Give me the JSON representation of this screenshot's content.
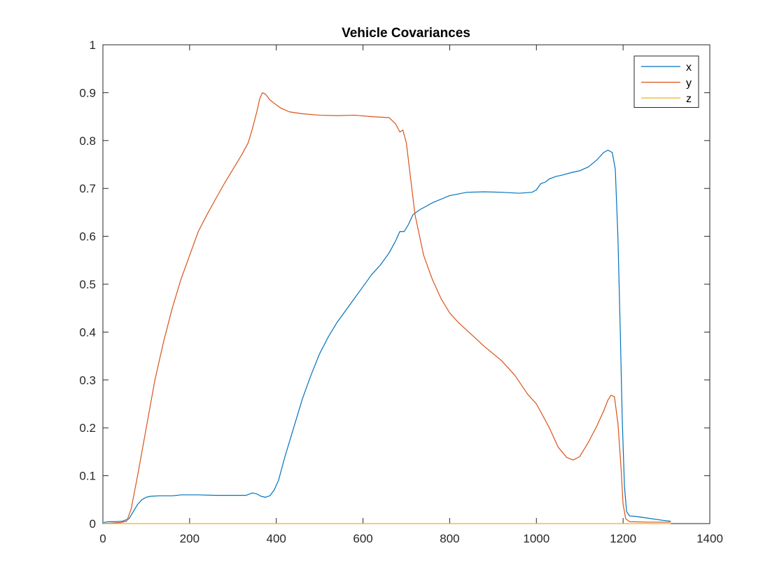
{
  "chart_data": {
    "type": "line",
    "title": "Vehicle Covariances",
    "xlabel": "",
    "ylabel": "",
    "xlim": [
      0,
      1400
    ],
    "ylim": [
      0,
      1
    ],
    "xticks": [
      0,
      200,
      400,
      600,
      800,
      1000,
      1200,
      1400
    ],
    "yticks": [
      0,
      0.1,
      0.2,
      0.3,
      0.4,
      0.5,
      0.6,
      0.7,
      0.8,
      0.9,
      1
    ],
    "grid": false,
    "legend_position": "top-right",
    "series": [
      {
        "name": "x",
        "color": "#0072BD",
        "points": [
          [
            0,
            0.0
          ],
          [
            5,
            0.003
          ],
          [
            15,
            0.004
          ],
          [
            30,
            0.004
          ],
          [
            45,
            0.005
          ],
          [
            60,
            0.01
          ],
          [
            70,
            0.025
          ],
          [
            80,
            0.04
          ],
          [
            90,
            0.05
          ],
          [
            100,
            0.055
          ],
          [
            110,
            0.057
          ],
          [
            130,
            0.058
          ],
          [
            160,
            0.058
          ],
          [
            180,
            0.06
          ],
          [
            220,
            0.06
          ],
          [
            260,
            0.059
          ],
          [
            300,
            0.059
          ],
          [
            330,
            0.059
          ],
          [
            345,
            0.064
          ],
          [
            355,
            0.062
          ],
          [
            365,
            0.057
          ],
          [
            375,
            0.055
          ],
          [
            385,
            0.058
          ],
          [
            395,
            0.07
          ],
          [
            405,
            0.09
          ],
          [
            420,
            0.14
          ],
          [
            440,
            0.2
          ],
          [
            460,
            0.26
          ],
          [
            480,
            0.31
          ],
          [
            500,
            0.355
          ],
          [
            520,
            0.39
          ],
          [
            540,
            0.42
          ],
          [
            560,
            0.445
          ],
          [
            580,
            0.47
          ],
          [
            600,
            0.495
          ],
          [
            620,
            0.52
          ],
          [
            640,
            0.54
          ],
          [
            660,
            0.565
          ],
          [
            675,
            0.59
          ],
          [
            685,
            0.61
          ],
          [
            695,
            0.61
          ],
          [
            705,
            0.625
          ],
          [
            715,
            0.645
          ],
          [
            730,
            0.655
          ],
          [
            760,
            0.67
          ],
          [
            800,
            0.685
          ],
          [
            840,
            0.692
          ],
          [
            880,
            0.693
          ],
          [
            920,
            0.692
          ],
          [
            960,
            0.69
          ],
          [
            990,
            0.692
          ],
          [
            1000,
            0.697
          ],
          [
            1010,
            0.71
          ],
          [
            1020,
            0.713
          ],
          [
            1030,
            0.72
          ],
          [
            1045,
            0.725
          ],
          [
            1060,
            0.728
          ],
          [
            1080,
            0.733
          ],
          [
            1100,
            0.737
          ],
          [
            1120,
            0.745
          ],
          [
            1140,
            0.76
          ],
          [
            1155,
            0.775
          ],
          [
            1165,
            0.78
          ],
          [
            1175,
            0.775
          ],
          [
            1182,
            0.74
          ],
          [
            1188,
            0.6
          ],
          [
            1193,
            0.42
          ],
          [
            1198,
            0.22
          ],
          [
            1203,
            0.08
          ],
          [
            1208,
            0.025
          ],
          [
            1215,
            0.016
          ],
          [
            1230,
            0.015
          ],
          [
            1260,
            0.011
          ],
          [
            1290,
            0.007
          ],
          [
            1310,
            0.005
          ]
        ]
      },
      {
        "name": "y",
        "color": "#D95319",
        "points": [
          [
            0,
            0.0
          ],
          [
            20,
            0.001
          ],
          [
            40,
            0.002
          ],
          [
            55,
            0.005
          ],
          [
            65,
            0.03
          ],
          [
            80,
            0.1
          ],
          [
            100,
            0.2
          ],
          [
            120,
            0.3
          ],
          [
            140,
            0.38
          ],
          [
            160,
            0.45
          ],
          [
            180,
            0.51
          ],
          [
            200,
            0.56
          ],
          [
            220,
            0.61
          ],
          [
            240,
            0.645
          ],
          [
            260,
            0.678
          ],
          [
            280,
            0.71
          ],
          [
            300,
            0.74
          ],
          [
            320,
            0.77
          ],
          [
            335,
            0.795
          ],
          [
            345,
            0.825
          ],
          [
            355,
            0.86
          ],
          [
            362,
            0.888
          ],
          [
            368,
            0.9
          ],
          [
            375,
            0.897
          ],
          [
            385,
            0.885
          ],
          [
            395,
            0.878
          ],
          [
            410,
            0.868
          ],
          [
            430,
            0.86
          ],
          [
            460,
            0.856
          ],
          [
            500,
            0.853
          ],
          [
            540,
            0.852
          ],
          [
            580,
            0.853
          ],
          [
            620,
            0.85
          ],
          [
            660,
            0.848
          ],
          [
            675,
            0.835
          ],
          [
            685,
            0.818
          ],
          [
            692,
            0.822
          ],
          [
            700,
            0.795
          ],
          [
            710,
            0.72
          ],
          [
            720,
            0.645
          ],
          [
            740,
            0.56
          ],
          [
            760,
            0.51
          ],
          [
            780,
            0.47
          ],
          [
            800,
            0.44
          ],
          [
            820,
            0.42
          ],
          [
            850,
            0.395
          ],
          [
            880,
            0.37
          ],
          [
            920,
            0.34
          ],
          [
            950,
            0.31
          ],
          [
            980,
            0.27
          ],
          [
            1000,
            0.25
          ],
          [
            1030,
            0.2
          ],
          [
            1050,
            0.16
          ],
          [
            1070,
            0.138
          ],
          [
            1085,
            0.133
          ],
          [
            1100,
            0.14
          ],
          [
            1120,
            0.17
          ],
          [
            1140,
            0.205
          ],
          [
            1155,
            0.235
          ],
          [
            1165,
            0.258
          ],
          [
            1172,
            0.268
          ],
          [
            1180,
            0.265
          ],
          [
            1188,
            0.21
          ],
          [
            1195,
            0.12
          ],
          [
            1200,
            0.04
          ],
          [
            1206,
            0.01
          ],
          [
            1215,
            0.004
          ],
          [
            1260,
            0.003
          ],
          [
            1310,
            0.003
          ]
        ]
      },
      {
        "name": "z",
        "color": "#EDB120",
        "points": [
          [
            0,
            0.0
          ],
          [
            1310,
            0.0
          ]
        ]
      }
    ]
  }
}
